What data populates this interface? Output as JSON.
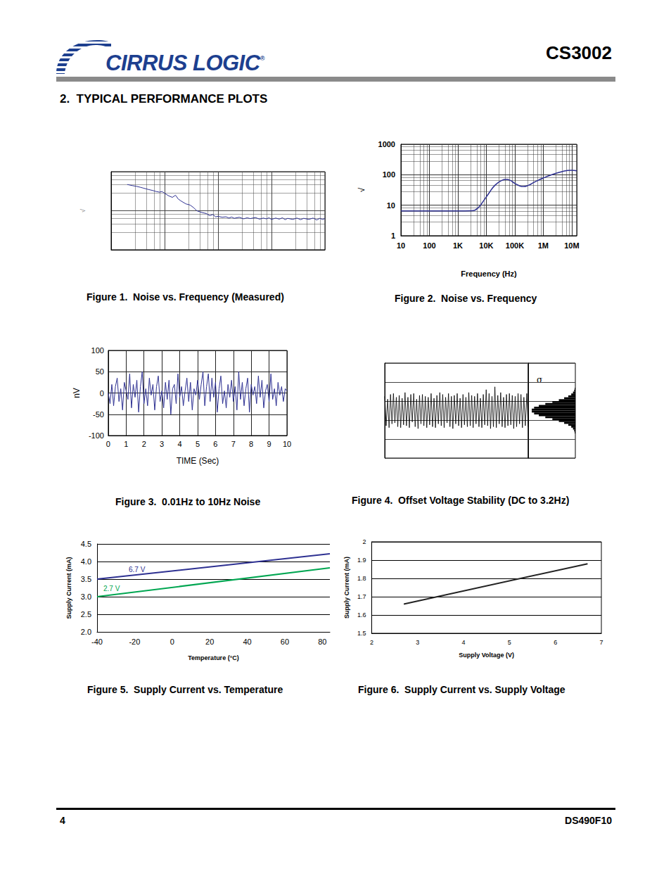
{
  "header": {
    "logo": "CIRRUS LOGIC",
    "logo_mark": "®",
    "part_number": "CS3002"
  },
  "section_title": "2.  TYPICAL PERFORMANCE PLOTS",
  "footer": {
    "page": "4",
    "document": "DS490F10"
  },
  "chart_data": [
    {
      "type": "line",
      "title": "Figure 1.  Noise vs. Frequency (Measured)",
      "ylabel": "√",
      "log": true,
      "grid": true,
      "tick_labels": false,
      "xlim": [
        1,
        10000
      ],
      "ylim": [
        1,
        100
      ],
      "xticks": [
        1,
        10,
        100,
        1000,
        10000
      ],
      "yticks": [
        1,
        10,
        100
      ],
      "color": "#2e3192",
      "x": [
        2,
        2.5,
        3,
        3.5,
        4,
        5,
        6,
        7,
        8,
        9,
        10,
        12,
        14,
        16,
        18,
        20,
        25,
        30,
        35,
        40,
        50,
        60,
        70,
        80,
        90,
        100,
        120,
        140,
        160,
        180,
        200,
        250,
        300,
        350,
        400,
        500,
        600,
        700,
        800,
        900,
        1000,
        1200,
        1400,
        1600,
        1800,
        2000,
        2500,
        3000,
        3500,
        4000,
        5000,
        6000,
        7000,
        8000,
        9000,
        10000
      ],
      "values": [
        47,
        44,
        42,
        40,
        38,
        35,
        33,
        31,
        30,
        31,
        28,
        24,
        22,
        25,
        20,
        18,
        15,
        14,
        12,
        10,
        9,
        8.5,
        7.5,
        8,
        7,
        7.2,
        6.8,
        7,
        6.5,
        6.9,
        6.4,
        6.8,
        6.2,
        6.6,
        6.3,
        6.7,
        6.1,
        6.5,
        6.2,
        6.6,
        6.0,
        6.5,
        6.1,
        6.6,
        5.9,
        6.4,
        6.0,
        6.5,
        5.9,
        6.4,
        6.0,
        6.5,
        5.8,
        6.4,
        6.0,
        6.3
      ]
    },
    {
      "type": "line",
      "title": "Figure 2.  Noise vs. Frequency",
      "xlabel": "Frequency (Hz)",
      "ylabel": "√",
      "log": true,
      "grid": true,
      "xlim": [
        10,
        15000000
      ],
      "ylim": [
        1,
        1000
      ],
      "xticks": [
        10,
        100,
        {
          "value": 1000,
          "label": "1K"
        },
        {
          "value": 10000,
          "label": "10K"
        },
        {
          "value": 100000,
          "label": "100K"
        },
        {
          "value": 1000000,
          "label": "1M"
        },
        {
          "value": 10000000,
          "label": "10M"
        }
      ],
      "yticks": [
        1,
        10,
        100,
        1000
      ],
      "color": "#2e3192",
      "x": [
        10,
        100,
        1000,
        3000,
        5000,
        8000,
        12000,
        20000,
        35000,
        50000,
        70000,
        100000,
        150000,
        200000,
        300000,
        500000,
        1000000,
        2000000,
        5000000,
        10000000,
        15000000
      ],
      "values": [
        6.5,
        6.5,
        6.5,
        6.6,
        8,
        14,
        24,
        45,
        65,
        70,
        65,
        52,
        43,
        41,
        45,
        58,
        78,
        100,
        130,
        140,
        135
      ]
    },
    {
      "type": "line",
      "title": "Figure 3.  0.01Hz to 10Hz Noise",
      "xlabel": "TIME (Sec)",
      "ylabel": "nV",
      "grid": true,
      "xlim": [
        0,
        10
      ],
      "ylim": [
        -100,
        100
      ],
      "xticks": [
        0,
        1,
        2,
        3,
        4,
        5,
        6,
        7,
        8,
        9,
        10
      ],
      "yticks": [
        -100,
        -50,
        0,
        50,
        100
      ],
      "color": "#2e3192",
      "x": [
        0,
        0.1,
        0.2,
        0.3,
        0.4,
        0.5,
        0.6,
        0.7,
        0.8,
        0.9,
        1,
        1.1,
        1.2,
        1.3,
        1.4,
        1.5,
        1.6,
        1.7,
        1.8,
        1.9,
        2,
        2.1,
        2.2,
        2.3,
        2.4,
        2.5,
        2.6,
        2.7,
        2.8,
        2.9,
        3,
        3.1,
        3.2,
        3.3,
        3.4,
        3.5,
        3.6,
        3.7,
        3.8,
        3.9,
        4,
        4.1,
        4.2,
        4.3,
        4.4,
        4.5,
        4.6,
        4.7,
        4.8,
        4.9,
        5,
        5.1,
        5.2,
        5.3,
        5.4,
        5.5,
        5.6,
        5.7,
        5.8,
        5.9,
        6,
        6.1,
        6.2,
        6.3,
        6.4,
        6.5,
        6.6,
        6.7,
        6.8,
        6.9,
        7,
        7.1,
        7.2,
        7.3,
        7.4,
        7.5,
        7.6,
        7.7,
        7.8,
        7.9,
        8,
        8.1,
        8.2,
        8.3,
        8.4,
        8.5,
        8.6,
        8.7,
        8.8,
        8.9,
        9,
        9.1,
        9.2,
        9.3,
        9.4,
        9.5,
        9.6,
        9.7,
        9.8,
        9.9,
        10
      ],
      "values": [
        0,
        -25,
        20,
        -30,
        15,
        35,
        -20,
        10,
        -40,
        25,
        5,
        -15,
        45,
        -35,
        20,
        -10,
        30,
        -45,
        15,
        50,
        -25,
        10,
        -30,
        35,
        -5,
        20,
        -40,
        15,
        40,
        -20,
        5,
        -35,
        25,
        -15,
        30,
        -50,
        10,
        20,
        -25,
        45,
        -10,
        15,
        -30,
        5,
        35,
        -20,
        25,
        -40,
        10,
        -5,
        30,
        -15,
        20,
        50,
        -30,
        15,
        45,
        -20,
        35,
        -10,
        25,
        -45,
        10,
        40,
        -25,
        5,
        -35,
        20,
        -10,
        30,
        -20,
        15,
        -40,
        50,
        -15,
        25,
        -30,
        10,
        35,
        -45,
        20,
        -5,
        15,
        -25,
        40,
        -10,
        30,
        -35,
        5,
        20,
        -20,
        45,
        -15,
        10,
        -30,
        25,
        -5,
        15,
        -20,
        10,
        5
      ]
    },
    {
      "type": "line",
      "title": "Figure 4.  Offset Voltage Stability (DC to 3.2Hz)",
      "grid": true,
      "tick_labels": false,
      "xlim": [
        0,
        99
      ],
      "ylim": [
        -2.5,
        2.5
      ],
      "yticks": [
        -2.5,
        -1.5,
        -0.5,
        0.5,
        1.5,
        2.5
      ],
      "color": "#000000",
      "values": [
        0.75,
        -0.8,
        0.6,
        -0.9,
        0.85,
        -0.7,
        0.9,
        -0.65,
        0.7,
        -0.85,
        0.8,
        -0.9,
        0.65,
        -0.75,
        0.95,
        -0.8,
        0.7,
        -0.9,
        0.85,
        -0.6,
        0.9,
        -0.85,
        0.6,
        -0.95,
        0.8,
        -0.7,
        0.85,
        -0.8,
        0.75,
        -0.9,
        0.7,
        -0.75,
        0.9,
        -0.85,
        0.65,
        -0.9,
        0.8,
        -0.7,
        0.95,
        -0.8,
        0.85,
        -0.9,
        0.7,
        -0.65,
        0.9,
        -0.85,
        0.75,
        -0.95,
        0.8,
        -0.7,
        0.9,
        -0.8,
        0.65,
        -0.9,
        0.85,
        -0.75,
        0.7,
        -0.85,
        0.95,
        -0.8,
        0.8,
        -0.9,
        0.75,
        -0.7,
        0.9,
        -0.85,
        0.65,
        -0.9,
        0.85,
        -0.75,
        1.1,
        -0.8,
        0.9,
        -0.95,
        0.75,
        -0.85,
        1.25,
        -0.9,
        0.8,
        -0.7,
        0.95,
        -0.85,
        0.7,
        -0.9,
        0.85,
        -0.8,
        0.9,
        -0.75,
        0.8,
        -0.95,
        0.75,
        -0.85,
        0.9,
        -0.7,
        0.85,
        -0.9,
        0.7,
        -0.8,
        0.9,
        -0.85
      ],
      "histogram": {
        "bins": [
          -1.2,
          -1.1,
          -1.0,
          -0.9,
          -0.8,
          -0.7,
          -0.6,
          -0.5,
          -0.4,
          -0.3,
          -0.2,
          -0.1,
          0,
          0.1,
          0.2,
          0.3,
          0.4,
          0.5,
          0.6,
          0.7,
          0.8,
          0.9,
          1.0,
          1.1,
          1.2
        ],
        "counts": [
          1,
          2,
          4,
          7,
          12,
          19,
          28,
          39,
          51,
          62,
          70,
          74,
          74,
          70,
          62,
          51,
          39,
          28,
          19,
          12,
          7,
          4,
          2,
          1
        ],
        "xlim": [
          0,
          80
        ],
        "color": "#000000"
      },
      "annotations": [
        {
          "text": "σ"
        }
      ]
    },
    {
      "type": "line",
      "title": "Figure 5.  Supply Current vs. Temperature",
      "xlabel": "Temperature (°C)",
      "ylabel": "Supply Current (mA)",
      "grid": "y",
      "xlim": [
        -40,
        84
      ],
      "ylim": [
        2,
        4.5
      ],
      "xticks": [
        -40,
        -20,
        0,
        20,
        40,
        60,
        80
      ],
      "yticks": [
        {
          "value": 2,
          "label": "2.0"
        },
        2.5,
        {
          "value": 3,
          "label": "3.0"
        },
        3.5,
        {
          "value": 4,
          "label": "4.0"
        },
        4.5
      ],
      "x": [
        -40,
        84
      ],
      "series": [
        {
          "name": "6.7 V",
          "color": "#2e3192",
          "values": [
            3.5,
            4.22
          ]
        },
        {
          "name": "2.7 V",
          "color": "#00a651",
          "values": [
            3.0,
            3.82
          ]
        }
      ]
    },
    {
      "type": "line",
      "title": "Figure 6.  Supply Current vs. Supply Voltage",
      "xlabel": "Supply Voltage (V)",
      "ylabel": "Supply Current (mA)",
      "grid": "y",
      "xlim": [
        2,
        7
      ],
      "ylim": [
        1.5,
        2
      ],
      "xticks": [
        2,
        3,
        4,
        5,
        6,
        7
      ],
      "yticks": [
        1.5,
        1.6,
        1.7,
        1.8,
        1.9,
        2
      ],
      "color": "#222222",
      "x": [
        2.7,
        6.7
      ],
      "values": [
        1.66,
        1.88
      ]
    }
  ]
}
